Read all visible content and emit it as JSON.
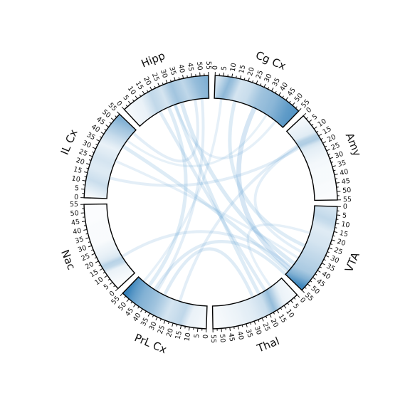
{
  "figure": {
    "type": "chord-diagram",
    "colors": {
      "band": "#2c7bb6",
      "ribbon": "#6aa7d6",
      "outline": "#000000",
      "text": "#111111"
    }
  },
  "chart_data": {
    "type": "chord",
    "axis_range": [
      0,
      55
    ],
    "ticks": [
      0,
      5,
      10,
      15,
      20,
      25,
      30,
      35,
      40,
      45,
      50,
      55
    ],
    "segments": [
      {
        "name": "Cg Cx",
        "label": "Cg Cx",
        "heat": [
          [
            0,
            0.2
          ],
          [
            8,
            0.55
          ],
          [
            15,
            0.2
          ],
          [
            22,
            0.25
          ],
          [
            30,
            0.45
          ],
          [
            40,
            0.55
          ],
          [
            50,
            0.75
          ],
          [
            55,
            0.8
          ]
        ]
      },
      {
        "name": "Amy",
        "label": "Amy",
        "heat": [
          [
            0,
            0.05
          ],
          [
            10,
            0.15
          ],
          [
            14,
            0.45
          ],
          [
            18,
            0.15
          ],
          [
            30,
            0.05
          ],
          [
            55,
            0.02
          ]
        ]
      },
      {
        "name": "VTA",
        "label": "VTA",
        "heat": [
          [
            0,
            0.2
          ],
          [
            8,
            0.3
          ],
          [
            15,
            0.15
          ],
          [
            25,
            0.2
          ],
          [
            35,
            0.3
          ],
          [
            45,
            0.4
          ],
          [
            50,
            0.6
          ],
          [
            55,
            0.9
          ]
        ]
      },
      {
        "name": "Thal",
        "label": "Thal",
        "heat": [
          [
            0,
            0.05
          ],
          [
            8,
            0.1
          ],
          [
            15,
            0.5
          ],
          [
            20,
            0.25
          ],
          [
            28,
            0.15
          ],
          [
            38,
            0.1
          ],
          [
            50,
            0.05
          ],
          [
            55,
            0.02
          ]
        ]
      },
      {
        "name": "PrL Cx",
        "label": "PrL Cx",
        "heat": [
          [
            0,
            0.05
          ],
          [
            10,
            0.1
          ],
          [
            15,
            0.3
          ],
          [
            25,
            0.2
          ],
          [
            35,
            0.45
          ],
          [
            45,
            0.6
          ],
          [
            52,
            0.8
          ],
          [
            55,
            0.95
          ]
        ]
      },
      {
        "name": "Nac",
        "label": "Nac",
        "heat": [
          [
            0,
            0.02
          ],
          [
            10,
            0.1
          ],
          [
            14,
            0.4
          ],
          [
            18,
            0.15
          ],
          [
            30,
            0.03
          ],
          [
            55,
            0.02
          ]
        ]
      },
      {
        "name": "IL Cx",
        "label": "IL Cx",
        "heat": [
          [
            0,
            0.05
          ],
          [
            10,
            0.25
          ],
          [
            18,
            0.15
          ],
          [
            25,
            0.2
          ],
          [
            35,
            0.1
          ],
          [
            42,
            0.25
          ],
          [
            50,
            0.45
          ],
          [
            55,
            0.6
          ]
        ]
      },
      {
        "name": "Hipp",
        "label": "Hipp",
        "heat": [
          [
            0,
            0.05
          ],
          [
            10,
            0.1
          ],
          [
            18,
            0.3
          ],
          [
            25,
            0.2
          ],
          [
            32,
            0.45
          ],
          [
            40,
            0.3
          ],
          [
            48,
            0.5
          ],
          [
            55,
            0.6
          ]
        ]
      }
    ],
    "links": [
      {
        "from": "Cg Cx",
        "from_pos": 30,
        "to": "VTA",
        "to_pos": 50,
        "strength": 0.45
      },
      {
        "from": "Cg Cx",
        "from_pos": 15,
        "to": "VTA",
        "to_pos": 30,
        "strength": 0.3
      },
      {
        "from": "Cg Cx",
        "from_pos": 48,
        "to": "Hipp",
        "to_pos": 30,
        "strength": 0.15
      },
      {
        "from": "Cg Cx",
        "from_pos": 40,
        "to": "IL Cx",
        "to_pos": 45,
        "strength": 0.12
      },
      {
        "from": "Cg Cx",
        "from_pos": 5,
        "to": "PrL Cx",
        "to_pos": 50,
        "strength": 0.15
      },
      {
        "from": "Hipp",
        "from_pos": 35,
        "to": "VTA",
        "to_pos": 45,
        "strength": 0.35
      },
      {
        "from": "Hipp",
        "from_pos": 30,
        "to": "Thal",
        "to_pos": 20,
        "strength": 0.3
      },
      {
        "from": "Hipp",
        "from_pos": 25,
        "to": "PrL Cx",
        "to_pos": 45,
        "strength": 0.3
      },
      {
        "from": "Hipp",
        "from_pos": 18,
        "to": "Thal",
        "to_pos": 15,
        "strength": 0.25
      },
      {
        "from": "Hipp",
        "from_pos": 45,
        "to": "IL Cx",
        "to_pos": 52,
        "strength": 0.2
      },
      {
        "from": "Hipp",
        "from_pos": 50,
        "to": "PrL Cx",
        "to_pos": 38,
        "strength": 0.2
      },
      {
        "from": "IL Cx",
        "from_pos": 40,
        "to": "VTA",
        "to_pos": 52,
        "strength": 0.3
      },
      {
        "from": "IL Cx",
        "from_pos": 15,
        "to": "Amy",
        "to_pos": 15,
        "strength": 0.2
      },
      {
        "from": "IL Cx",
        "from_pos": 28,
        "to": "VTA",
        "to_pos": 40,
        "strength": 0.15
      },
      {
        "from": "PrL Cx",
        "from_pos": 40,
        "to": "VTA",
        "to_pos": 55,
        "strength": 0.25
      },
      {
        "from": "PrL Cx",
        "from_pos": 20,
        "to": "Amy",
        "to_pos": 13,
        "strength": 0.2
      },
      {
        "from": "PrL Cx",
        "from_pos": 32,
        "to": "Thal",
        "to_pos": 25,
        "strength": 0.25
      },
      {
        "from": "Nac",
        "from_pos": 15,
        "to": "VTA",
        "to_pos": 48,
        "strength": 0.2
      },
      {
        "from": "Thal",
        "from_pos": 10,
        "to": "VTA",
        "to_pos": 20,
        "strength": 0.15
      },
      {
        "from": "Amy",
        "from_pos": 14,
        "to": "VTA",
        "to_pos": 35,
        "strength": 0.18
      }
    ]
  }
}
